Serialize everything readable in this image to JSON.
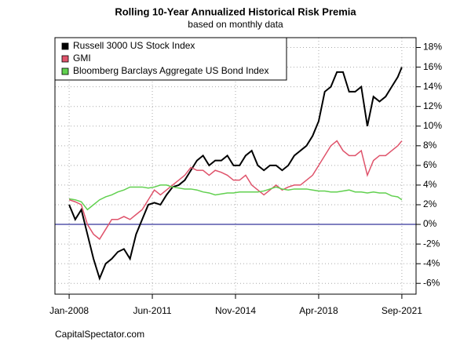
{
  "chart_data": {
    "type": "line",
    "title": "Rolling 10-Year Annualized Historical Risk Premia",
    "subtitle": "based on monthly data",
    "footer": "CapitalSpectator.com",
    "x": [
      "2008-01",
      "2008-04",
      "2008-07",
      "2008-10",
      "2009-01",
      "2009-04",
      "2009-07",
      "2009-10",
      "2010-01",
      "2010-04",
      "2010-07",
      "2010-10",
      "2011-01",
      "2011-04",
      "2011-07",
      "2011-10",
      "2012-01",
      "2012-04",
      "2012-07",
      "2012-10",
      "2013-01",
      "2013-04",
      "2013-07",
      "2013-10",
      "2014-01",
      "2014-04",
      "2014-07",
      "2014-10",
      "2015-01",
      "2015-04",
      "2015-07",
      "2015-10",
      "2016-01",
      "2016-04",
      "2016-07",
      "2016-10",
      "2017-01",
      "2017-04",
      "2017-07",
      "2017-10",
      "2018-01",
      "2018-04",
      "2018-07",
      "2018-10",
      "2019-01",
      "2019-04",
      "2019-07",
      "2019-10",
      "2020-01",
      "2020-04",
      "2020-07",
      "2020-10",
      "2021-01",
      "2021-04",
      "2021-07",
      "2021-09"
    ],
    "series": [
      {
        "name": "Russell 3000 US Stock Index",
        "color": "#000000",
        "values": [
          2.0,
          0.5,
          1.5,
          -1,
          -3.5,
          -5.5,
          -4,
          -3.5,
          -2.8,
          -2.5,
          -3.5,
          -1,
          0.5,
          2,
          2.2,
          2.0,
          3,
          3.8,
          4,
          4.5,
          5.5,
          6.5,
          7,
          6,
          6.5,
          6.5,
          7,
          6,
          6,
          7,
          7.5,
          6,
          5.5,
          6,
          6,
          5.5,
          6,
          7,
          7.5,
          8,
          9,
          10.5,
          13.5,
          14,
          15.5,
          15.5,
          13.5,
          13.5,
          14,
          10,
          13,
          12.5,
          13,
          14,
          15,
          16
        ]
      },
      {
        "name": "GMI",
        "color": "#DF536B",
        "values": [
          2.5,
          2.3,
          2.0,
          0,
          -1,
          -1.5,
          -0.5,
          0.5,
          0.5,
          0.8,
          0.5,
          1,
          1.5,
          2.5,
          3.5,
          3.0,
          3.5,
          4,
          4.5,
          5,
          5.8,
          5.5,
          5.5,
          5,
          5.5,
          5.3,
          5,
          4.5,
          4.5,
          5,
          4,
          3.5,
          3,
          3.5,
          4,
          3.5,
          3.8,
          4,
          4,
          4.5,
          5,
          6,
          7,
          8,
          8.5,
          7.5,
          7,
          7,
          7.5,
          5,
          6.5,
          7,
          7,
          7.5,
          8,
          8.5
        ]
      },
      {
        "name": "Bloomberg Barclays Aggregate US Bond Index",
        "color": "#61D04F",
        "values": [
          2.6,
          2.5,
          2.3,
          1.5,
          2.0,
          2.5,
          2.8,
          3.0,
          3.3,
          3.5,
          3.8,
          3.8,
          3.8,
          3.7,
          3.8,
          4.0,
          4.0,
          3.8,
          3.7,
          3.6,
          3.6,
          3.5,
          3.3,
          3.2,
          3.0,
          3.1,
          3.2,
          3.2,
          3.3,
          3.3,
          3.3,
          3.3,
          3.4,
          3.6,
          3.8,
          3.6,
          3.5,
          3.6,
          3.6,
          3.6,
          3.5,
          3.4,
          3.4,
          3.3,
          3.3,
          3.4,
          3.5,
          3.3,
          3.3,
          3.2,
          3.3,
          3.2,
          3.2,
          2.9,
          2.8,
          2.5
        ]
      }
    ],
    "xlim": [
      "2007-06",
      "2022-04"
    ],
    "xticks": [
      {
        "value": "2008-01",
        "label": "Jan-2008"
      },
      {
        "value": "2011-06",
        "label": "Jun-2011"
      },
      {
        "value": "2014-11",
        "label": "Nov-2014"
      },
      {
        "value": "2018-04",
        "label": "Apr-2018"
      },
      {
        "value": "2021-09",
        "label": "Sep-2021"
      }
    ],
    "ylim": [
      -7.1,
      19.0
    ],
    "yticks": [
      {
        "value": -6,
        "label": "-6%"
      },
      {
        "value": -4,
        "label": "-4%"
      },
      {
        "value": -2,
        "label": "-2%"
      },
      {
        "value": 0,
        "label": "0%"
      },
      {
        "value": 2,
        "label": "2%"
      },
      {
        "value": 4,
        "label": "4%"
      },
      {
        "value": 6,
        "label": "6%"
      },
      {
        "value": 8,
        "label": "8%"
      },
      {
        "value": 10,
        "label": "10%"
      },
      {
        "value": 12,
        "label": "12%"
      },
      {
        "value": 14,
        "label": "14%"
      },
      {
        "value": 16,
        "label": "16%"
      },
      {
        "value": 18,
        "label": "18%"
      }
    ],
    "grid": true,
    "legend": "upper left",
    "hline": {
      "value": 0,
      "color": "#000080"
    }
  }
}
